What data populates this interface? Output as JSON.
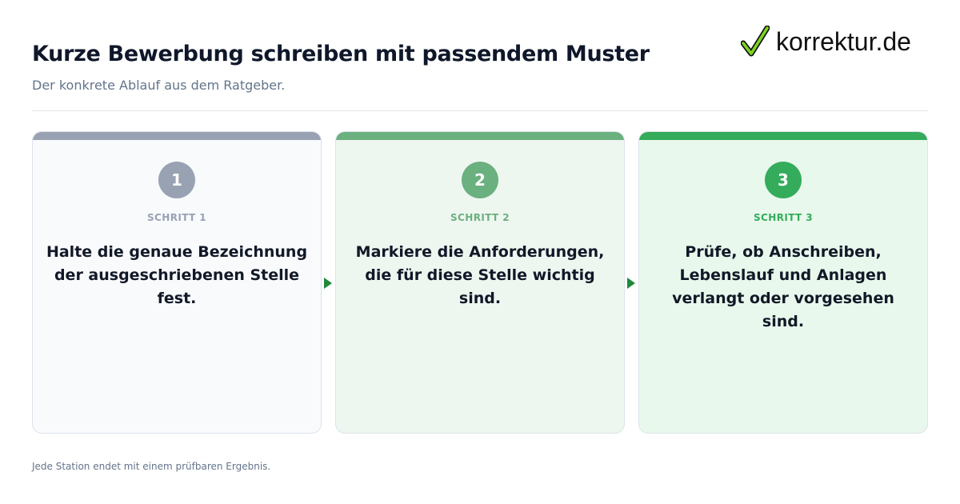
{
  "header": {
    "title": "Kurze Bewerbung schreiben mit passendem Muster",
    "subtitle": "Der konkrete Ablauf aus dem Ratgeber."
  },
  "logo": {
    "text": "korrektur.de",
    "icon": "checkmark-icon",
    "check_color": "#7ed321"
  },
  "steps": [
    {
      "number": "1",
      "label": "SCHRITT 1",
      "text": "Halte die genaue Bezeichnung der ausgeschriebenen Stelle fest.",
      "accent_color": "#98a2b3",
      "background_color": "#f8fafc"
    },
    {
      "number": "2",
      "label": "SCHRITT 2",
      "text": "Markiere die Anforderungen, die für diese Stelle wichtig sind.",
      "accent_color": "#6bb07f",
      "background_color": "#eef6f0"
    },
    {
      "number": "3",
      "label": "SCHRITT 3",
      "text": "Prüfe, ob Anschreiben, Lebenslauf und Anlagen verlangt oder vorgesehen sind.",
      "accent_color": "#34ac5b",
      "background_color": "#e8f8ec"
    }
  ],
  "connector": {
    "icon": "arrow-right-icon",
    "color": "#1f8a3a"
  },
  "footer": {
    "note": "Jede Station endet mit einem prüfbaren Ergebnis."
  }
}
